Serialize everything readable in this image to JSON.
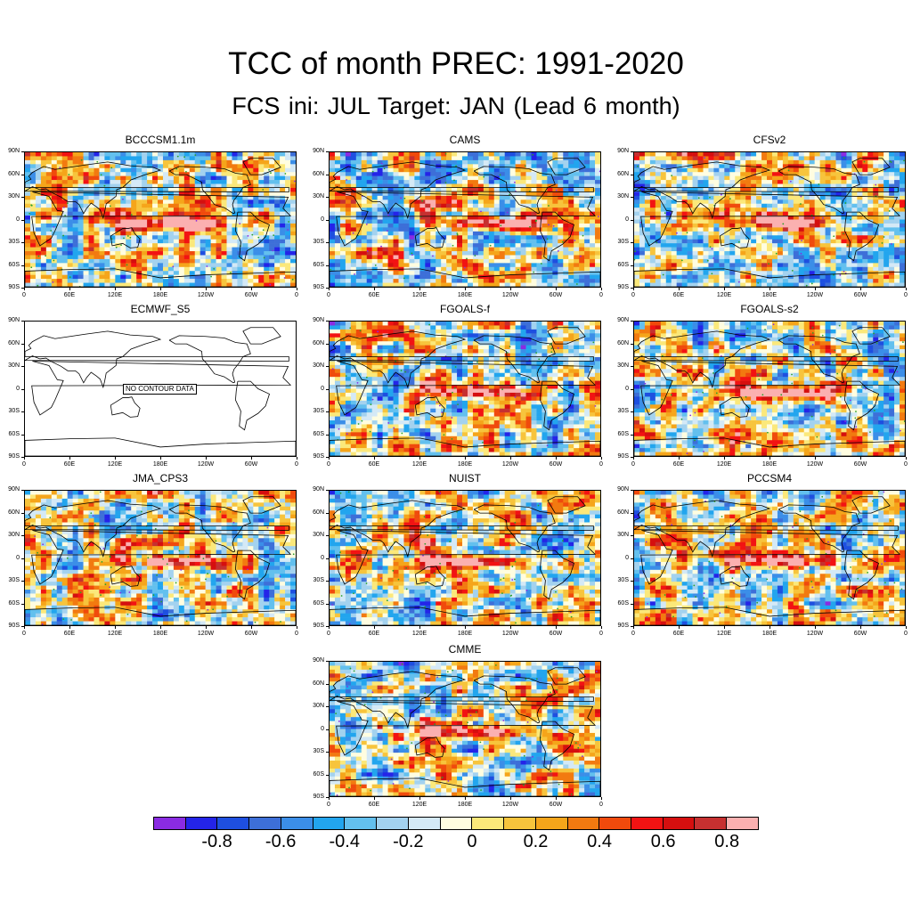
{
  "title": "TCC of month PREC: 1991-2020",
  "subtitle": "FCS ini: JUL    Target: JAN (Lead 6 month)",
  "lat_labels": [
    "90N",
    "60N",
    "30N",
    "0",
    "30S",
    "60S",
    "90S"
  ],
  "lon_labels": [
    "0",
    "60E",
    "120E",
    "180E",
    "120W",
    "60W",
    "0"
  ],
  "panels": [
    {
      "name": "BCCCSM1.1m",
      "has_data": true
    },
    {
      "name": "CAMS",
      "has_data": true
    },
    {
      "name": "CFSv2",
      "has_data": true
    },
    {
      "name": "ECMWF_S5",
      "has_data": false,
      "note": "NO CONTOUR DATA"
    },
    {
      "name": "FGOALS-f",
      "has_data": true
    },
    {
      "name": "FGOALS-s2",
      "has_data": true
    },
    {
      "name": "JMA_CPS3",
      "has_data": true
    },
    {
      "name": "NUIST",
      "has_data": true
    },
    {
      "name": "PCCSM4",
      "has_data": true
    },
    {
      "name": "CMME",
      "has_data": true
    }
  ],
  "colorbar": {
    "colors": [
      "#8a2be2",
      "#2424e8",
      "#1e4fe0",
      "#3d6fd8",
      "#3b8ee8",
      "#22a5ee",
      "#63c0ee",
      "#a3d2ef",
      "#d4e9f6",
      "#fffde0",
      "#fbe87a",
      "#f7c43c",
      "#f5a51a",
      "#f27a10",
      "#f04a0c",
      "#f21313",
      "#d50f0f",
      "#c63030",
      "#fbb0b0"
    ],
    "labels": [
      "-0.8",
      "-0.6",
      "-0.4",
      "-0.2",
      "0",
      "0.2",
      "0.4",
      "0.6",
      "0.8"
    ]
  }
}
